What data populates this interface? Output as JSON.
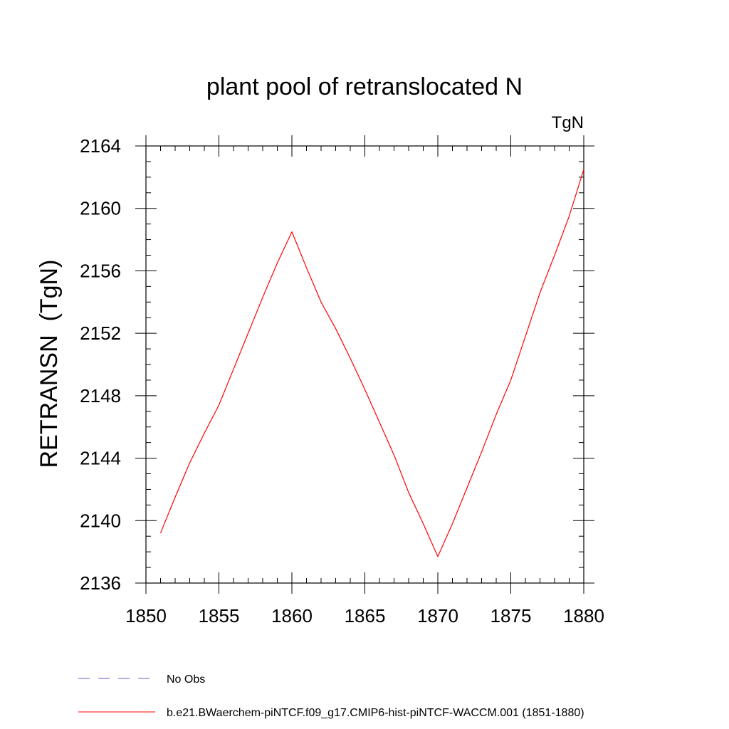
{
  "chart_data": {
    "type": "line",
    "title": "plant pool of retranslocated N",
    "units_label": "TgN",
    "xlabel": "",
    "ylabel": "RETRANSN  (TgN)",
    "xlim": [
      1850,
      1880
    ],
    "ylim": [
      2136,
      2164
    ],
    "xticks": [
      1850,
      1855,
      1860,
      1865,
      1870,
      1875,
      1880
    ],
    "yticks": [
      2136,
      2140,
      2144,
      2148,
      2152,
      2156,
      2160,
      2164
    ],
    "x_minor_step": 1,
    "y_minor_step": 1,
    "grid": false,
    "legend_position": "bottom-left",
    "legend": [
      {
        "label": "No Obs",
        "color": "#6a5acd",
        "dash": "dashed"
      },
      {
        "label": "b.e21.BWaerchem-piNTCF.f09_g17.CMIP6-hist-piNTCF-WACCM.001 (1851-1880)",
        "color": "#ff0000",
        "dash": "solid"
      }
    ],
    "series": [
      {
        "name": "b.e21.BWaerchem-piNTCF.f09_g17.CMIP6-hist-piNTCF-WACCM.001 (1851-1880)",
        "color": "#ff0000",
        "x": [
          1851,
          1852,
          1853,
          1854,
          1855,
          1856,
          1857,
          1858,
          1859,
          1860,
          1861,
          1862,
          1863,
          1864,
          1865,
          1866,
          1867,
          1868,
          1869,
          1870,
          1871,
          1872,
          1873,
          1874,
          1875,
          1876,
          1877,
          1878,
          1879,
          1880
        ],
        "y": [
          2139.2,
          2141.5,
          2143.7,
          2145.6,
          2147.4,
          2149.7,
          2152.0,
          2154.3,
          2156.5,
          2158.5,
          2156.2,
          2154.0,
          2152.3,
          2150.4,
          2148.4,
          2146.3,
          2144.2,
          2141.8,
          2139.8,
          2137.7,
          2139.8,
          2142.1,
          2144.4,
          2146.8,
          2149.0,
          2151.8,
          2154.6,
          2157.0,
          2159.5,
          2162.5
        ]
      }
    ]
  }
}
